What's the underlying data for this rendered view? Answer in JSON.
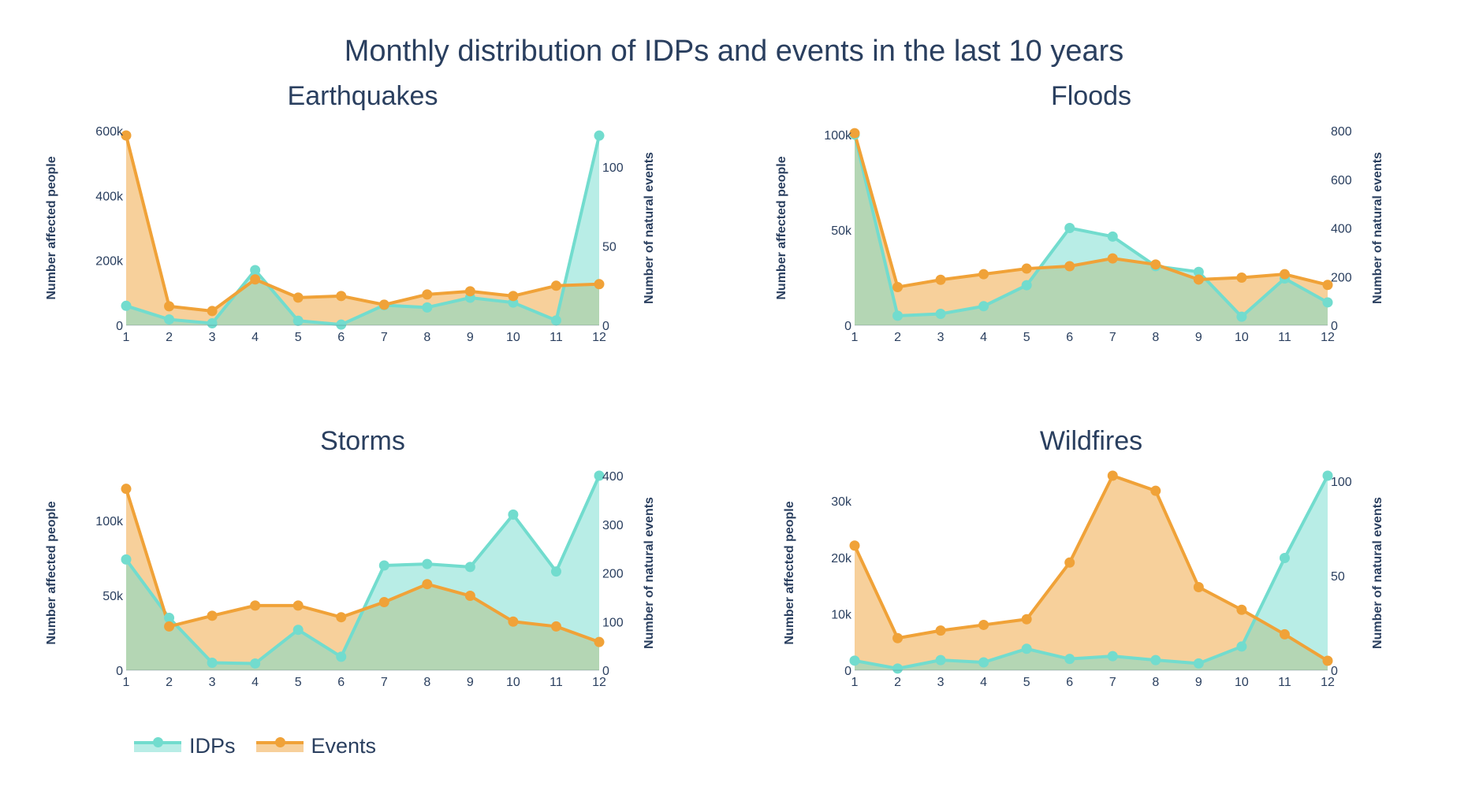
{
  "title": "Monthly distribution of IDPs and events in the last 10 years",
  "colors": {
    "idps": "#72dcce",
    "events": "#f0a238"
  },
  "legend": {
    "idps_label": "IDPs",
    "events_label": "Events"
  },
  "chart_data": [
    {
      "type": "area",
      "title": "Earthquakes",
      "ylabel": "Number affected people",
      "y2label": "Number of natural events",
      "x": [
        1,
        2,
        3,
        4,
        5,
        6,
        7,
        8,
        9,
        10,
        11,
        12
      ],
      "ylim": [
        0,
        600000
      ],
      "y2lim": [
        0,
        123
      ],
      "yticks": [
        0,
        200000,
        400000,
        600000
      ],
      "ytick_labels": [
        "0",
        "200k",
        "400k",
        "600k"
      ],
      "y2ticks": [
        0,
        50,
        100
      ],
      "y2tick_labels": [
        "0",
        "50",
        "100"
      ],
      "series": [
        {
          "name": "IDPs",
          "axis": "y",
          "values": [
            60000,
            18000,
            6000,
            170000,
            14000,
            2000,
            62000,
            55000,
            85000,
            70000,
            15000,
            585000
          ]
        },
        {
          "name": "Events",
          "axis": "y2",
          "values": [
            120,
            12,
            9,
            29,
            17.5,
            18.5,
            13,
            19.5,
            21.5,
            18.5,
            25,
            26
          ]
        }
      ]
    },
    {
      "type": "area",
      "title": "Floods",
      "ylabel": "Number affected people",
      "y2label": "Number of natural events",
      "x": [
        1,
        2,
        3,
        4,
        5,
        6,
        7,
        8,
        9,
        10,
        11,
        12
      ],
      "ylim": [
        0,
        102000
      ],
      "y2lim": [
        0,
        800
      ],
      "yticks": [
        0,
        50000,
        100000
      ],
      "ytick_labels": [
        "0",
        "50k",
        "100k"
      ],
      "y2ticks": [
        0,
        200,
        400,
        600,
        800
      ],
      "y2tick_labels": [
        "0",
        "200",
        "400",
        "600",
        "800"
      ],
      "series": [
        {
          "name": "IDPs",
          "axis": "y",
          "values": [
            100000,
            5000,
            6000,
            10000,
            21000,
            51000,
            46500,
            31000,
            28000,
            4500,
            24500,
            12000
          ]
        },
        {
          "name": "Events",
          "axis": "y2",
          "values": [
            790,
            157,
            187,
            210,
            233,
            243,
            275,
            250,
            188,
            196,
            210,
            166
          ]
        }
      ]
    },
    {
      "type": "area",
      "title": "Storms",
      "ylabel": "Number affected people",
      "y2label": "Number of natural events",
      "x": [
        1,
        2,
        3,
        4,
        5,
        6,
        7,
        8,
        9,
        10,
        11,
        12
      ],
      "ylim": [
        0,
        130000
      ],
      "y2lim": [
        0,
        400
      ],
      "yticks": [
        0,
        50000,
        100000
      ],
      "ytick_labels": [
        "0",
        "50k",
        "100k"
      ],
      "y2ticks": [
        0,
        100,
        200,
        300,
        400
      ],
      "y2tick_labels": [
        "0",
        "100",
        "200",
        "300",
        "400"
      ],
      "series": [
        {
          "name": "IDPs",
          "axis": "y",
          "values": [
            74000,
            35000,
            5000,
            4500,
            27000,
            9000,
            70000,
            71000,
            69000,
            104000,
            66000,
            130000
          ]
        },
        {
          "name": "Events",
          "axis": "y2",
          "values": [
            373,
            90,
            112,
            133,
            133,
            109,
            140,
            177,
            153,
            100,
            90,
            58
          ]
        }
      ]
    },
    {
      "type": "area",
      "title": "Wildfires",
      "ylabel": "Number affected people",
      "y2label": "Number of natural events",
      "x": [
        1,
        2,
        3,
        4,
        5,
        6,
        7,
        8,
        9,
        10,
        11,
        12
      ],
      "ylim": [
        0,
        34500
      ],
      "y2lim": [
        0,
        103
      ],
      "yticks": [
        0,
        10000,
        20000,
        30000
      ],
      "ytick_labels": [
        "0",
        "10k",
        "20k",
        "30k"
      ],
      "y2ticks": [
        0,
        50,
        100
      ],
      "y2tick_labels": [
        "0",
        "50",
        "100"
      ],
      "series": [
        {
          "name": "IDPs",
          "axis": "y",
          "values": [
            1700,
            300,
            1800,
            1400,
            3800,
            2000,
            2500,
            1800,
            1200,
            4200,
            19900,
            34500
          ]
        },
        {
          "name": "Events",
          "axis": "y2",
          "values": [
            66,
            17,
            21,
            24,
            27,
            57,
            103,
            95,
            44,
            32,
            19,
            5
          ]
        }
      ]
    }
  ]
}
